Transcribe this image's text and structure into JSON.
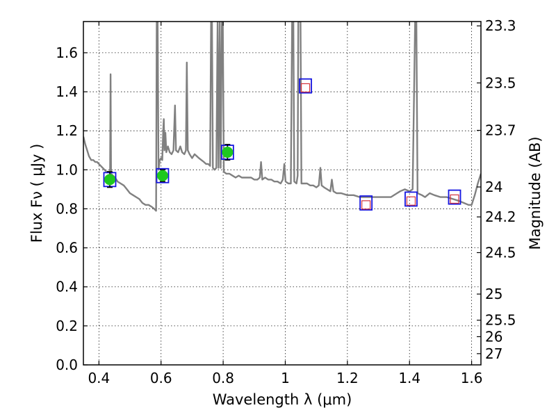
{
  "chart_data": {
    "type": "line",
    "xlabel": "Wavelength  λ (μm)",
    "ylabel": "Flux  Fν  ( μJy )",
    "y2label": "Magnitude (AB)",
    "xlim": [
      0.35,
      1.63
    ],
    "ylim": [
      0.0,
      1.76
    ],
    "grid": true,
    "x_ticks": [
      {
        "value": 0.4,
        "label": "0.4"
      },
      {
        "value": 0.6,
        "label": "0.6"
      },
      {
        "value": 0.8,
        "label": "0.8"
      },
      {
        "value": 1.0,
        "label": "1"
      },
      {
        "value": 1.2,
        "label": "1.2"
      },
      {
        "value": 1.4,
        "label": "1.4"
      },
      {
        "value": 1.6,
        "label": "1.6"
      }
    ],
    "y_ticks": [
      {
        "value": 0.0,
        "label": "0.0"
      },
      {
        "value": 0.2,
        "label": "0.2"
      },
      {
        "value": 0.4,
        "label": "0.4"
      },
      {
        "value": 0.6,
        "label": "0.6"
      },
      {
        "value": 0.8,
        "label": "0.8"
      },
      {
        "value": 1.0,
        "label": "1.0"
      },
      {
        "value": 1.2,
        "label": "1.2"
      },
      {
        "value": 1.4,
        "label": "1.4"
      },
      {
        "value": 1.6,
        "label": "1.6"
      }
    ],
    "y2_ticks": [
      {
        "value": 23.3,
        "label": "23.3"
      },
      {
        "value": 23.5,
        "label": "23.5"
      },
      {
        "value": 23.7,
        "label": "23.7"
      },
      {
        "value": 24.0,
        "label": "24"
      },
      {
        "value": 24.2,
        "label": "24.2"
      },
      {
        "value": 24.5,
        "label": "24.5"
      },
      {
        "value": 25.0,
        "label": "25"
      },
      {
        "value": 25.5,
        "label": "25.5"
      },
      {
        "value": 26.0,
        "label": "26"
      },
      {
        "value": 27.0,
        "label": "27"
      }
    ],
    "colors": {
      "model": "#808080",
      "model_box": "#1414e0",
      "observed_point": "#1ec81e",
      "upper_limit_box": "#d2323c",
      "axis": "#000000"
    },
    "model_spectrum": [
      [
        0.35,
        1.17
      ],
      [
        0.356,
        1.13
      ],
      [
        0.362,
        1.1
      ],
      [
        0.368,
        1.07
      ],
      [
        0.375,
        1.05
      ],
      [
        0.382,
        1.05
      ],
      [
        0.388,
        1.04
      ],
      [
        0.394,
        1.04
      ],
      [
        0.4,
        1.03
      ],
      [
        0.406,
        1.02
      ],
      [
        0.412,
        1.01
      ],
      [
        0.418,
        1.0
      ],
      [
        0.424,
        0.99
      ],
      [
        0.43,
        0.99
      ],
      [
        0.436,
        0.99
      ],
      [
        0.4375,
        1.49
      ],
      [
        0.439,
        0.98
      ],
      [
        0.445,
        0.97
      ],
      [
        0.452,
        0.96
      ],
      [
        0.46,
        0.94
      ],
      [
        0.47,
        0.93
      ],
      [
        0.48,
        0.92
      ],
      [
        0.49,
        0.9
      ],
      [
        0.5,
        0.88
      ],
      [
        0.51,
        0.87
      ],
      [
        0.52,
        0.86
      ],
      [
        0.53,
        0.85
      ],
      [
        0.54,
        0.83
      ],
      [
        0.55,
        0.82
      ],
      [
        0.56,
        0.82
      ],
      [
        0.57,
        0.81
      ],
      [
        0.578,
        0.8
      ],
      [
        0.584,
        0.79
      ],
      [
        0.586,
        1.76
      ],
      [
        0.589,
        1.76
      ],
      [
        0.592,
        1.0
      ],
      [
        0.596,
        1.05
      ],
      [
        0.6,
        1.06
      ],
      [
        0.604,
        1.05
      ],
      [
        0.607,
        1.2
      ],
      [
        0.609,
        1.26
      ],
      [
        0.611,
        1.1
      ],
      [
        0.614,
        1.19
      ],
      [
        0.617,
        1.09
      ],
      [
        0.622,
        1.12
      ],
      [
        0.628,
        1.09
      ],
      [
        0.634,
        1.08
      ],
      [
        0.64,
        1.1
      ],
      [
        0.645,
        1.33
      ],
      [
        0.648,
        1.1
      ],
      [
        0.655,
        1.09
      ],
      [
        0.662,
        1.12
      ],
      [
        0.668,
        1.09
      ],
      [
        0.675,
        1.08
      ],
      [
        0.68,
        1.1
      ],
      [
        0.683,
        1.55
      ],
      [
        0.686,
        1.1
      ],
      [
        0.692,
        1.08
      ],
      [
        0.7,
        1.06
      ],
      [
        0.708,
        1.08
      ],
      [
        0.715,
        1.07
      ],
      [
        0.722,
        1.06
      ],
      [
        0.73,
        1.05
      ],
      [
        0.738,
        1.04
      ],
      [
        0.745,
        1.03
      ],
      [
        0.752,
        1.03
      ],
      [
        0.758,
        1.02
      ],
      [
        0.761,
        1.76
      ],
      [
        0.764,
        1.76
      ],
      [
        0.767,
        1.01
      ],
      [
        0.772,
        1.0
      ],
      [
        0.778,
        1.01
      ],
      [
        0.782,
        1.76
      ],
      [
        0.785,
        1.01
      ],
      [
        0.789,
        1.76
      ],
      [
        0.792,
        1.01
      ],
      [
        0.796,
        1.76
      ],
      [
        0.799,
        1.76
      ],
      [
        0.802,
        0.99
      ],
      [
        0.81,
        0.98
      ],
      [
        0.82,
        0.98
      ],
      [
        0.83,
        0.97
      ],
      [
        0.84,
        0.96
      ],
      [
        0.85,
        0.97
      ],
      [
        0.86,
        0.96
      ],
      [
        0.87,
        0.96
      ],
      [
        0.88,
        0.96
      ],
      [
        0.89,
        0.96
      ],
      [
        0.9,
        0.95
      ],
      [
        0.91,
        0.95
      ],
      [
        0.918,
        0.96
      ],
      [
        0.922,
        1.04
      ],
      [
        0.926,
        0.95
      ],
      [
        0.935,
        0.96
      ],
      [
        0.945,
        0.95
      ],
      [
        0.955,
        0.95
      ],
      [
        0.965,
        0.94
      ],
      [
        0.975,
        0.94
      ],
      [
        0.985,
        0.93
      ],
      [
        0.992,
        0.95
      ],
      [
        0.997,
        1.03
      ],
      [
        1.001,
        0.94
      ],
      [
        1.01,
        0.93
      ],
      [
        1.018,
        0.93
      ],
      [
        1.022,
        1.76
      ],
      [
        1.026,
        1.76
      ],
      [
        1.029,
        0.94
      ],
      [
        1.036,
        0.93
      ],
      [
        1.04,
        0.97
      ],
      [
        1.042,
        1.76
      ],
      [
        1.046,
        1.76
      ],
      [
        1.049,
        1.76
      ],
      [
        1.052,
        0.93
      ],
      [
        1.06,
        0.93
      ],
      [
        1.07,
        0.93
      ],
      [
        1.08,
        0.92
      ],
      [
        1.09,
        0.92
      ],
      [
        1.1,
        0.91
      ],
      [
        1.108,
        0.92
      ],
      [
        1.113,
        1.01
      ],
      [
        1.117,
        0.92
      ],
      [
        1.125,
        0.91
      ],
      [
        1.135,
        0.9
      ],
      [
        1.145,
        0.89
      ],
      [
        1.15,
        0.95
      ],
      [
        1.155,
        0.89
      ],
      [
        1.165,
        0.88
      ],
      [
        1.18,
        0.88
      ],
      [
        1.2,
        0.87
      ],
      [
        1.22,
        0.87
      ],
      [
        1.24,
        0.86
      ],
      [
        1.26,
        0.86
      ],
      [
        1.28,
        0.86
      ],
      [
        1.3,
        0.86
      ],
      [
        1.32,
        0.86
      ],
      [
        1.34,
        0.86
      ],
      [
        1.36,
        0.88
      ],
      [
        1.37,
        0.89
      ],
      [
        1.385,
        0.9
      ],
      [
        1.4,
        0.89
      ],
      [
        1.41,
        0.9
      ],
      [
        1.418,
        1.76
      ],
      [
        1.422,
        1.76
      ],
      [
        1.426,
        0.88
      ],
      [
        1.44,
        0.87
      ],
      [
        1.45,
        0.86
      ],
      [
        1.465,
        0.88
      ],
      [
        1.48,
        0.87
      ],
      [
        1.5,
        0.86
      ],
      [
        1.52,
        0.86
      ],
      [
        1.54,
        0.85
      ],
      [
        1.56,
        0.84
      ],
      [
        1.575,
        0.83
      ],
      [
        1.59,
        0.82
      ],
      [
        1.6,
        0.82
      ],
      [
        1.61,
        0.87
      ],
      [
        1.62,
        0.93
      ],
      [
        1.63,
        0.98
      ]
    ],
    "model_photometry": [
      {
        "x": 0.435,
        "y": 0.95
      },
      {
        "x": 0.605,
        "y": 0.97
      },
      {
        "x": 0.814,
        "y": 1.09
      },
      {
        "x": 1.065,
        "y": 1.43
      },
      {
        "x": 1.26,
        "y": 0.83
      },
      {
        "x": 1.405,
        "y": 0.85
      },
      {
        "x": 1.545,
        "y": 0.86
      }
    ],
    "observed": [
      {
        "x": 0.435,
        "y": 0.95,
        "err": 0.04
      },
      {
        "x": 0.605,
        "y": 0.97,
        "err": 0.03
      },
      {
        "x": 0.814,
        "y": 1.09,
        "err": 0.04
      }
    ],
    "upper_limits": [
      {
        "x": 1.065,
        "y": 1.42
      },
      {
        "x": 1.26,
        "y": 0.82
      },
      {
        "x": 1.405,
        "y": 0.84
      },
      {
        "x": 1.545,
        "y": 0.85
      }
    ]
  }
}
